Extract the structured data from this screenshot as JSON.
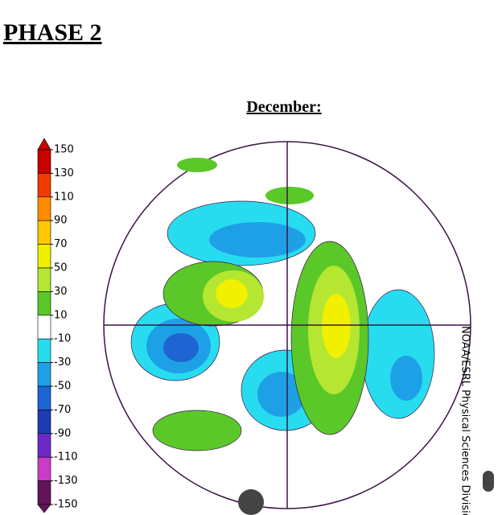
{
  "header": {
    "title": "PHASE 2"
  },
  "map": {
    "title": "December:",
    "credit": "NOAA/ESRL Physical Sciences Division"
  },
  "colorbar": {
    "ticks": [
      150,
      130,
      110,
      90,
      70,
      50,
      30,
      10,
      -10,
      -30,
      -50,
      -70,
      -90,
      -110,
      -130,
      -150
    ],
    "colors": [
      "#c80000",
      "#f03c00",
      "#ff8c00",
      "#ffc800",
      "#f0f000",
      "#b4e632",
      "#5ac828",
      "#ffffff",
      "#28dcf0",
      "#1ea0e6",
      "#1e64d2",
      "#1e3cb4",
      "#6e28c8",
      "#c83cc8",
      "#64145a"
    ]
  }
}
